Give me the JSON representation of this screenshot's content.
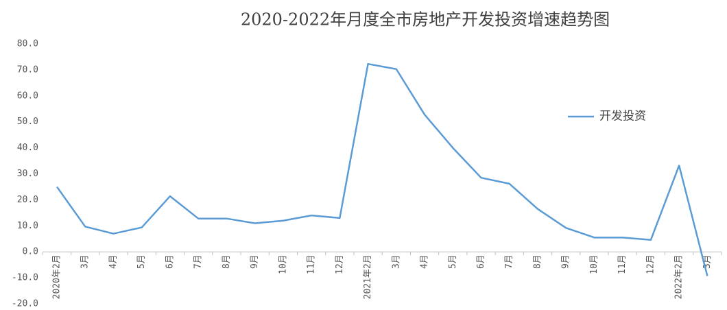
{
  "chart_data": {
    "type": "line",
    "title": "2020-2022年月度全市房地产开发投资增速趋势图",
    "categories": [
      "2020年2月",
      "3月",
      "4月",
      "5月",
      "6月",
      "7月",
      "8月",
      "9月",
      "10月",
      "11月",
      "12月",
      "2021年2月",
      "3月",
      "4月",
      "5月",
      "6月",
      "7月",
      "8月",
      "9月",
      "10月",
      "11月",
      "12月",
      "2022年2月",
      "3月"
    ],
    "series": [
      {
        "name": "开发投资",
        "color": "#5b9bd5",
        "values": [
          25.0,
          9.7,
          7.0,
          9.4,
          21.4,
          12.8,
          12.8,
          11.0,
          12.0,
          14.0,
          13.0,
          72.3,
          70.3,
          52.8,
          40.0,
          28.5,
          26.2,
          16.5,
          9.2,
          5.5,
          5.5,
          4.6,
          33.2,
          -9.3
        ]
      }
    ],
    "ylim": [
      -20,
      80
    ],
    "yticks": [
      {
        "value": -20,
        "label": "-20.0"
      },
      {
        "value": -10,
        "label": "-10.0"
      },
      {
        "value": 0,
        "label": "0.0"
      },
      {
        "value": 10,
        "label": "10.0"
      },
      {
        "value": 20,
        "label": "20.0"
      },
      {
        "value": 30,
        "label": "30.0"
      },
      {
        "value": 40,
        "label": "40.0"
      },
      {
        "value": 50,
        "label": "50.0"
      },
      {
        "value": 60,
        "label": "60.0"
      },
      {
        "value": 70,
        "label": "70.0"
      },
      {
        "value": 80,
        "label": "80.0"
      }
    ],
    "grid": false,
    "legend": "right"
  }
}
